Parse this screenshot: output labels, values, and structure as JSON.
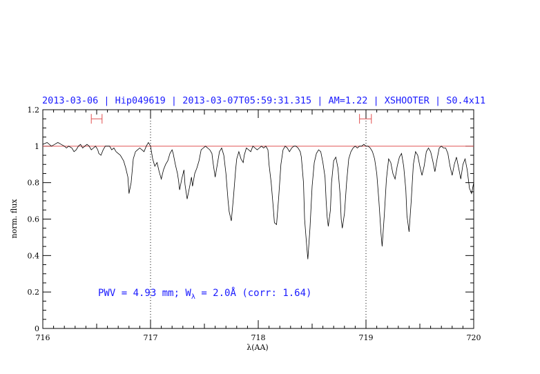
{
  "chart_data": {
    "type": "line",
    "title": "2013-03-06 | Hip049619 | 2013-03-07T05:59:31.315 | AM=1.22 | XSHOOTER | S0.4x11",
    "xlabel": "λ(AA)",
    "ylabel": "norm. flux",
    "xlim": [
      716,
      720
    ],
    "ylim": [
      0,
      1.2
    ],
    "x_ticks": [
      "716",
      "717",
      "718",
      "719",
      "720"
    ],
    "y_ticks": [
      "0",
      "0.2",
      "0.4",
      "0.6",
      "0.8",
      "1",
      "1.2"
    ],
    "reference_line": {
      "y": 1.0,
      "color": "#e05050"
    },
    "vertical_markers": [
      717.0,
      719.0
    ],
    "ranges": [
      {
        "from": 716.45,
        "to": 716.55,
        "y": 1.15
      },
      {
        "from": 718.94,
        "to": 719.05,
        "y": 1.15
      }
    ],
    "annotation": {
      "prefix": "PWV = 4.93 mm; W",
      "subscript": "λ",
      "suffix": " = 2.0Å (corr: 1.64)"
    },
    "series": [
      {
        "color": "#000000",
        "points": [
          [
            716.0,
            1.01
          ],
          [
            716.04,
            1.02
          ],
          [
            716.08,
            1.0
          ],
          [
            716.11,
            1.01
          ],
          [
            716.14,
            1.02
          ],
          [
            716.17,
            1.01
          ],
          [
            716.2,
            1.0
          ],
          [
            716.22,
            0.99
          ],
          [
            716.24,
            1.0
          ],
          [
            716.27,
            0.99
          ],
          [
            716.29,
            0.97
          ],
          [
            716.31,
            0.98
          ],
          [
            716.33,
            1.0
          ],
          [
            716.35,
            1.01
          ],
          [
            716.37,
            0.99
          ],
          [
            716.39,
            1.0
          ],
          [
            716.41,
            1.01
          ],
          [
            716.43,
            1.0
          ],
          [
            716.45,
            0.98
          ],
          [
            716.47,
            0.99
          ],
          [
            716.49,
            1.0
          ],
          [
            716.51,
            0.98
          ],
          [
            716.52,
            0.96
          ],
          [
            716.54,
            0.95
          ],
          [
            716.56,
            0.98
          ],
          [
            716.58,
            1.0
          ],
          [
            716.6,
            1.0
          ],
          [
            716.62,
            1.0
          ],
          [
            716.64,
            0.98
          ],
          [
            716.66,
            0.99
          ],
          [
            716.68,
            0.97
          ],
          [
            716.7,
            0.96
          ],
          [
            716.72,
            0.95
          ],
          [
            716.74,
            0.93
          ],
          [
            716.75,
            0.92
          ],
          [
            716.77,
            0.88
          ],
          [
            716.79,
            0.83
          ],
          [
            716.8,
            0.74
          ],
          [
            716.82,
            0.8
          ],
          [
            716.84,
            0.93
          ],
          [
            716.86,
            0.97
          ],
          [
            716.88,
            0.98
          ],
          [
            716.9,
            0.99
          ],
          [
            716.92,
            0.98
          ],
          [
            716.94,
            0.97
          ],
          [
            716.96,
            1.0
          ],
          [
            716.98,
            1.02
          ],
          [
            717.0,
            1.0
          ],
          [
            717.02,
            0.93
          ],
          [
            717.04,
            0.89
          ],
          [
            717.06,
            0.91
          ],
          [
            717.08,
            0.86
          ],
          [
            717.1,
            0.82
          ],
          [
            717.12,
            0.87
          ],
          [
            717.14,
            0.9
          ],
          [
            717.16,
            0.92
          ],
          [
            717.18,
            0.96
          ],
          [
            717.2,
            0.98
          ],
          [
            717.21,
            0.96
          ],
          [
            717.23,
            0.9
          ],
          [
            717.25,
            0.85
          ],
          [
            717.26,
            0.81
          ],
          [
            717.27,
            0.76
          ],
          [
            717.29,
            0.82
          ],
          [
            717.31,
            0.87
          ],
          [
            717.32,
            0.79
          ],
          [
            717.34,
            0.71
          ],
          [
            717.36,
            0.77
          ],
          [
            717.38,
            0.83
          ],
          [
            717.39,
            0.78
          ],
          [
            717.41,
            0.85
          ],
          [
            717.43,
            0.88
          ],
          [
            717.45,
            0.92
          ],
          [
            717.47,
            0.98
          ],
          [
            717.49,
            0.99
          ],
          [
            717.51,
            1.0
          ],
          [
            717.53,
            0.99
          ],
          [
            717.55,
            0.98
          ],
          [
            717.57,
            0.96
          ],
          [
            717.58,
            0.91
          ],
          [
            717.6,
            0.83
          ],
          [
            717.62,
            0.9
          ],
          [
            717.64,
            0.97
          ],
          [
            717.66,
            0.99
          ],
          [
            717.68,
            0.95
          ],
          [
            717.7,
            0.85
          ],
          [
            717.72,
            0.7
          ],
          [
            717.73,
            0.64
          ],
          [
            717.75,
            0.59
          ],
          [
            717.77,
            0.72
          ],
          [
            717.79,
            0.87
          ],
          [
            717.8,
            0.93
          ],
          [
            717.82,
            0.97
          ],
          [
            717.84,
            0.93
          ],
          [
            717.86,
            0.91
          ],
          [
            717.87,
            0.95
          ],
          [
            717.89,
            0.99
          ],
          [
            717.91,
            0.98
          ],
          [
            717.93,
            0.97
          ],
          [
            717.95,
            1.0
          ],
          [
            717.97,
            0.99
          ],
          [
            717.99,
            0.98
          ],
          [
            718.01,
            0.99
          ],
          [
            718.03,
            1.0
          ],
          [
            718.05,
            0.99
          ],
          [
            718.07,
            1.0
          ],
          [
            718.09,
            0.98
          ],
          [
            718.1,
            0.9
          ],
          [
            718.12,
            0.8
          ],
          [
            718.14,
            0.66
          ],
          [
            718.15,
            0.58
          ],
          [
            718.17,
            0.57
          ],
          [
            718.19,
            0.72
          ],
          [
            718.21,
            0.9
          ],
          [
            718.23,
            0.98
          ],
          [
            718.25,
            1.0
          ],
          [
            718.27,
            0.99
          ],
          [
            718.29,
            0.97
          ],
          [
            718.31,
            0.99
          ],
          [
            718.33,
            1.0
          ],
          [
            718.35,
            1.0
          ],
          [
            718.37,
            0.99
          ],
          [
            718.39,
            0.97
          ],
          [
            718.4,
            0.94
          ],
          [
            718.42,
            0.8
          ],
          [
            718.43,
            0.6
          ],
          [
            718.45,
            0.45
          ],
          [
            718.46,
            0.38
          ],
          [
            718.48,
            0.55
          ],
          [
            718.5,
            0.78
          ],
          [
            718.52,
            0.91
          ],
          [
            718.54,
            0.96
          ],
          [
            718.56,
            0.98
          ],
          [
            718.58,
            0.97
          ],
          [
            718.6,
            0.91
          ],
          [
            718.62,
            0.83
          ],
          [
            718.63,
            0.7
          ],
          [
            718.64,
            0.61
          ],
          [
            718.65,
            0.56
          ],
          [
            718.67,
            0.65
          ],
          [
            718.68,
            0.8
          ],
          [
            718.7,
            0.92
          ],
          [
            718.72,
            0.94
          ],
          [
            718.74,
            0.88
          ],
          [
            718.76,
            0.73
          ],
          [
            718.77,
            0.6
          ],
          [
            718.78,
            0.55
          ],
          [
            718.8,
            0.63
          ],
          [
            718.82,
            0.8
          ],
          [
            718.84,
            0.93
          ],
          [
            718.86,
            0.97
          ],
          [
            718.88,
            0.99
          ],
          [
            718.9,
            1.0
          ],
          [
            718.92,
            0.99
          ],
          [
            718.94,
            1.0
          ],
          [
            718.96,
            1.0
          ],
          [
            718.98,
            1.01
          ],
          [
            719.0,
            1.0
          ],
          [
            719.02,
            1.0
          ],
          [
            719.04,
            0.99
          ],
          [
            719.06,
            0.97
          ],
          [
            719.08,
            0.93
          ],
          [
            719.1,
            0.85
          ],
          [
            719.12,
            0.7
          ],
          [
            719.14,
            0.52
          ],
          [
            719.15,
            0.45
          ],
          [
            719.17,
            0.62
          ],
          [
            719.19,
            0.82
          ],
          [
            719.21,
            0.93
          ],
          [
            719.23,
            0.91
          ],
          [
            719.25,
            0.85
          ],
          [
            719.27,
            0.82
          ],
          [
            719.29,
            0.89
          ],
          [
            719.31,
            0.94
          ],
          [
            719.33,
            0.96
          ],
          [
            719.35,
            0.89
          ],
          [
            719.37,
            0.76
          ],
          [
            719.38,
            0.62
          ],
          [
            719.4,
            0.53
          ],
          [
            719.42,
            0.7
          ],
          [
            719.44,
            0.9
          ],
          [
            719.46,
            0.97
          ],
          [
            719.48,
            0.95
          ],
          [
            719.5,
            0.89
          ],
          [
            719.52,
            0.84
          ],
          [
            719.54,
            0.89
          ],
          [
            719.56,
            0.97
          ],
          [
            719.58,
            0.99
          ],
          [
            719.6,
            0.97
          ],
          [
            719.62,
            0.92
          ],
          [
            719.64,
            0.86
          ],
          [
            719.66,
            0.93
          ],
          [
            719.68,
            0.99
          ],
          [
            719.7,
            1.0
          ],
          [
            719.72,
            0.99
          ],
          [
            719.74,
            0.99
          ],
          [
            719.76,
            0.96
          ],
          [
            719.78,
            0.89
          ],
          [
            719.8,
            0.84
          ],
          [
            719.82,
            0.9
          ],
          [
            719.84,
            0.94
          ],
          [
            719.86,
            0.88
          ],
          [
            719.88,
            0.82
          ],
          [
            719.9,
            0.9
          ],
          [
            719.92,
            0.93
          ],
          [
            719.94,
            0.87
          ],
          [
            719.96,
            0.77
          ],
          [
            719.98,
            0.74
          ],
          [
            720.0,
            0.8
          ]
        ]
      }
    ]
  }
}
